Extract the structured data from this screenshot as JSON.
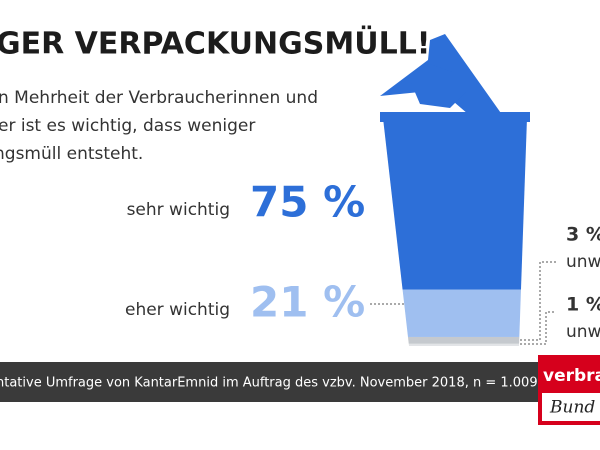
{
  "chart_data": {
    "type": "bin",
    "title": "GER VERPACKUNGSMÜLL!",
    "subtitle": [
      "n Mehrheit der Verbraucherinnen und",
      "er ist es wichtig, dass weniger",
      "ngsmüll entsteht."
    ],
    "categories": [
      "sehr wichtig",
      "eher wichtig",
      "unw",
      "unw"
    ],
    "values": [
      75,
      21,
      3,
      1
    ],
    "value_labels": [
      "75 %",
      "21 %",
      "3 %",
      "1 %"
    ],
    "colors": [
      "#2d6fd8",
      "#9fbff0",
      "#c5c9ce",
      "#e2e4e7"
    ],
    "note": "ntative Umfrage von KantarEmnid im Auftrag des vzbv. November 2018, n = 1.009"
  },
  "logo": [
    "verbrau",
    "Bund"
  ]
}
